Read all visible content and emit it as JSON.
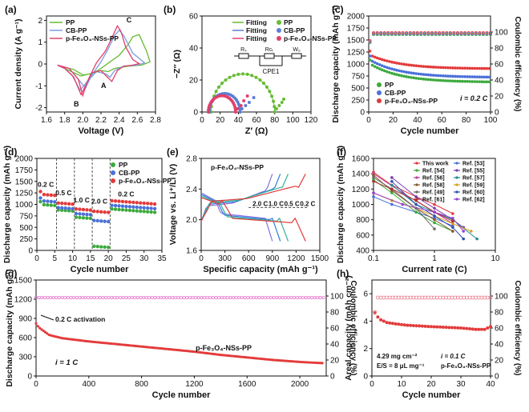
{
  "chart_data": [
    {
      "id": "a",
      "panel_label": "(a)",
      "type": "line",
      "xlabel": "Voltage (V)",
      "ylabel": "Current density (A g⁻¹)",
      "xlim": [
        1.6,
        2.8
      ],
      "ylim": [
        -2.2,
        2.2
      ],
      "xticks": [
        "1.6",
        "1.8",
        "2.0",
        "2.2",
        "2.4",
        "2.6",
        "2.8"
      ],
      "yticks": [
        "-2",
        "-1",
        "0",
        "1",
        "2"
      ],
      "annotations": [
        "A",
        "B",
        "C"
      ],
      "legend": [
        "PP",
        "CB-PP",
        "p-Fe₃O₄-NSs-PP"
      ],
      "colors": [
        "#66bb33",
        "#7a9ee0",
        "#e0406a"
      ],
      "series": [
        {
          "name": "PP",
          "x": [
            1.75,
            1.9,
            2.0,
            2.1,
            2.2,
            2.3,
            2.4,
            2.5,
            2.55,
            2.62,
            2.7,
            2.74,
            2.65,
            2.5,
            2.35,
            2.28,
            2.2,
            2.08,
            1.98,
            1.9,
            1.8,
            1.75
          ],
          "y": [
            -0.1,
            -0.25,
            -0.5,
            -0.45,
            -0.2,
            0.1,
            0.4,
            0.9,
            1.25,
            1.35,
            0.6,
            0.1,
            -0.05,
            -0.1,
            -0.2,
            -0.35,
            -0.3,
            -0.45,
            -0.55,
            -0.4,
            -0.2,
            -0.1
          ]
        },
        {
          "name": "CB-PP",
          "x": [
            1.72,
            1.85,
            1.95,
            2.03,
            2.1,
            2.2,
            2.28,
            2.35,
            2.4,
            2.45,
            2.55,
            2.68,
            2.6,
            2.45,
            2.35,
            2.3,
            2.25,
            2.15,
            2.05,
            1.97,
            1.88,
            1.8,
            1.72
          ],
          "y": [
            -0.05,
            -0.2,
            -0.7,
            -1.1,
            -0.5,
            0.1,
            0.7,
            1.3,
            1.55,
            1.3,
            0.5,
            0.05,
            -0.05,
            -0.1,
            -0.3,
            -0.6,
            -0.45,
            -0.35,
            -0.8,
            -1.2,
            -0.5,
            -0.2,
            -0.05
          ]
        },
        {
          "name": "p-Fe₃O₄-NSs-PP",
          "x": [
            1.72,
            1.85,
            1.95,
            2.0,
            2.05,
            2.15,
            2.25,
            2.32,
            2.38,
            2.42,
            2.47,
            2.55,
            2.62,
            2.55,
            2.45,
            2.38,
            2.32,
            2.27,
            2.2,
            2.1,
            2.03,
            1.98,
            1.9,
            1.8,
            1.72
          ],
          "y": [
            -0.05,
            -0.2,
            -0.7,
            -1.45,
            -0.8,
            0.05,
            0.6,
            1.2,
            1.75,
            1.5,
            0.8,
            0.2,
            0.02,
            -0.05,
            -0.1,
            -0.3,
            -0.8,
            -0.6,
            -0.3,
            -0.4,
            -1.0,
            -1.4,
            -0.6,
            -0.2,
            -0.05
          ]
        }
      ]
    },
    {
      "id": "b",
      "panel_label": "(b)",
      "type": "scatter",
      "xlabel": "Z′ (Ω)",
      "ylabel": "−Z″ (Ω)",
      "xlim": [
        0,
        120
      ],
      "ylim": [
        0,
        60
      ],
      "xticks": [
        "0",
        "20",
        "40",
        "60",
        "80",
        "100",
        "120"
      ],
      "yticks": [
        "0",
        "20",
        "40",
        "60"
      ],
      "legend": [
        "Fitting",
        "Fitting",
        "Fitting",
        "PP",
        "CB-PP",
        "p-Fe₃O₄-NSs-PP"
      ],
      "circuit_labels": [
        "Rₛ",
        "Rᴄₜ",
        "Wₒ",
        "CPE1"
      ],
      "colors": [
        "#66bb33",
        "#5a7fd6",
        "#e0406a"
      ],
      "series": [
        {
          "name": "PP",
          "center": 45,
          "radius": 35,
          "tail_x": [
            82,
            85,
            88,
            90
          ],
          "tail_y": [
            2,
            4,
            6,
            8
          ]
        },
        {
          "name": "CB-PP",
          "center": 25,
          "radius": 17,
          "tail_x": [
            44,
            48,
            52,
            57
          ],
          "tail_y": [
            2,
            4,
            6,
            9
          ]
        },
        {
          "name": "p-Fe₃O₄-NSs-PP",
          "center": 22,
          "radius": 15,
          "tail_x": [
            39,
            43,
            46,
            50
          ],
          "tail_y": [
            2,
            4,
            7,
            10
          ]
        }
      ]
    },
    {
      "id": "c",
      "panel_label": "(c)",
      "type": "scatter",
      "xlabel": "Cycle number",
      "ylabel": "Discharge capacity (mAh g⁻¹)",
      "y2label": "Coulombic efficiency (%)",
      "xlim": [
        0,
        100
      ],
      "ylim": [
        0,
        2000
      ],
      "y2lim": [
        0,
        120
      ],
      "xticks": [
        "0",
        "20",
        "40",
        "60",
        "80",
        "100"
      ],
      "yticks": [
        "0",
        "250",
        "500",
        "750",
        "1000",
        "1250",
        "1500",
        "1750",
        "2000"
      ],
      "y2ticks": [
        "0",
        "20",
        "40",
        "60",
        "80",
        "100"
      ],
      "rate_label": "i = 0.2 C",
      "legend": [
        "PP",
        "CB-PP",
        "p-Fe₃O₄-NSs-PP"
      ],
      "colors": [
        "#3daa3d",
        "#4a70d8",
        "#e33b3b"
      ],
      "series": [
        {
          "name": "PP",
          "start": 1020,
          "end": 620
        },
        {
          "name": "CB-PP",
          "start": 1100,
          "end": 720
        },
        {
          "name": "p-Fe₃O₄-NSs-PP",
          "start": 1200,
          "end": 900
        }
      ],
      "ce": [
        {
          "name": "PP",
          "value": 97
        },
        {
          "name": "CB-PP",
          "value": 98
        },
        {
          "name": "p-Fe₃O₄-NSs-PP",
          "value": 99
        }
      ]
    },
    {
      "id": "d",
      "panel_label": "(d)",
      "type": "scatter",
      "xlabel": "Cycle number",
      "ylabel": "Discharge capacity (mAh g⁻¹)",
      "xlim": [
        0,
        35
      ],
      "ylim": [
        0,
        2000
      ],
      "xticks": [
        "0",
        "5",
        "10",
        "15",
        "20",
        "25",
        "30",
        "35"
      ],
      "yticks": [
        "0",
        "250",
        "500",
        "750",
        "1000",
        "1250",
        "1500",
        "1750",
        "2000"
      ],
      "rate_labels": [
        "0.2 C",
        "0.5 C",
        "1.0 C",
        "2.0 C",
        "0.2 C"
      ],
      "legend": [
        "PP",
        "CB-PP",
        "p-Fe₃O₄-NSs-PP"
      ],
      "colors": [
        "#3daa3d",
        "#4a70d8",
        "#e33b3b"
      ],
      "series": [
        {
          "name": "PP",
          "levels": [
            1000,
            880,
            720,
            90,
            900
          ]
        },
        {
          "name": "CB-PP",
          "levels": [
            1080,
            930,
            800,
            650,
            980
          ]
        },
        {
          "name": "p-Fe₃O₄-NSs-PP",
          "levels": [
            1220,
            1030,
            900,
            850,
            1080
          ]
        }
      ]
    },
    {
      "id": "e",
      "panel_label": "(e)",
      "type": "line",
      "title": "p-Fe₃O₄-NSs-PP",
      "xlabel": "Specific capacity (mAh g⁻¹)",
      "ylabel": "Voltage vs. Li⁺/Li (V)",
      "xlim": [
        0,
        1500
      ],
      "ylim": [
        1.6,
        2.8
      ],
      "xticks": [
        "0",
        "300",
        "600",
        "900",
        "1200",
        "1500"
      ],
      "yticks": [
        "1.6",
        "2.0",
        "2.4",
        "2.8"
      ],
      "rates": [
        "2.0 C",
        "1.0 C",
        "0.5 C",
        "0.2 C"
      ],
      "colors": [
        "#8a6fdf",
        "#2f7fd8",
        "#2fb39a",
        "#e03a3a"
      ],
      "series": [
        {
          "name": "2.0 C",
          "cap": 900
        },
        {
          "name": "1.0 C",
          "cap": 1000
        },
        {
          "name": "0.5 C",
          "cap": 1100
        },
        {
          "name": "0.2 C",
          "cap": 1320
        }
      ]
    },
    {
      "id": "f",
      "panel_label": "(f)",
      "type": "line",
      "xlabel": "Current rate (C)",
      "ylabel": "Discharge capacity (mAh g⁻¹)",
      "xlim": [
        0.1,
        10
      ],
      "ylim": [
        400,
        1600
      ],
      "xscale": "log",
      "xticks": [
        "0.1",
        "1",
        "10"
      ],
      "yticks": [
        "400",
        "600",
        "800",
        "1000",
        "1200",
        "1400",
        "1600"
      ],
      "legend": [
        "This work",
        "Ref. [53]",
        "Ref. [54]",
        "Ref. [55]",
        "Ref. [56]",
        "Ref. [57]",
        "Ref. [58]",
        "Ref. [59]",
        "Ref. [49]",
        "Ref. [60]",
        "Ref. [61]",
        "Ref. [62]"
      ],
      "colors": [
        "#e33b3b",
        "#4a70d8",
        "#3daa3d",
        "#7a3fb0",
        "#c23fa0",
        "#1f8f8f",
        "#8a5a2a",
        "#d9a21f",
        "#6a6a6a",
        "#2f4fb0",
        "#b03030",
        "#9a3fd0"
      ],
      "series": [
        {
          "name": "This work",
          "x": [
            0.1,
            0.2,
            0.5,
            1,
            2
          ],
          "y": [
            1420,
            1250,
            1100,
            1000,
            880
          ]
        },
        {
          "name": "Ref. [53]",
          "x": [
            0.1,
            0.2,
            0.5,
            1,
            2
          ],
          "y": [
            1100,
            1000,
            900,
            820,
            720
          ]
        },
        {
          "name": "Ref. [54]",
          "x": [
            0.1,
            0.2,
            0.5,
            1,
            2
          ],
          "y": [
            1320,
            1150,
            900,
            760,
            650
          ]
        },
        {
          "name": "Ref. [55]",
          "x": [
            0.2,
            0.5,
            1,
            2,
            3
          ],
          "y": [
            1350,
            1100,
            950,
            800,
            700
          ]
        },
        {
          "name": "Ref. [56]",
          "x": [
            0.1,
            0.3,
            1,
            2
          ],
          "y": [
            1400,
            1150,
            900,
            750
          ]
        },
        {
          "name": "Ref. [57]",
          "x": [
            0.2,
            0.5,
            1,
            2,
            5
          ],
          "y": [
            1250,
            1000,
            900,
            800,
            550
          ]
        },
        {
          "name": "Ref. [58]",
          "x": [
            0.1,
            0.2,
            0.5,
            1,
            2
          ],
          "y": [
            1380,
            1180,
            950,
            800,
            650
          ]
        },
        {
          "name": "Ref. [59]",
          "x": [
            0.1,
            0.2,
            0.5,
            1,
            2,
            4
          ],
          "y": [
            1150,
            1050,
            950,
            850,
            750,
            650
          ]
        },
        {
          "name": "Ref. [49]",
          "x": [
            0.1,
            0.2,
            0.5,
            1
          ],
          "y": [
            1350,
            1200,
            950,
            680
          ]
        },
        {
          "name": "Ref. [60]",
          "x": [
            0.2,
            0.5,
            1,
            2,
            3
          ],
          "y": [
            1300,
            1000,
            850,
            700,
            550
          ]
        },
        {
          "name": "Ref. [61]",
          "x": [
            0.1,
            0.2,
            0.5,
            1,
            2
          ],
          "y": [
            1300,
            1200,
            1050,
            900,
            780
          ]
        },
        {
          "name": "Ref. [62]",
          "x": [
            0.1,
            0.3,
            1,
            2,
            3
          ],
          "y": [
            1150,
            1000,
            900,
            820,
            650
          ]
        }
      ]
    },
    {
      "id": "g",
      "panel_label": "(g)",
      "type": "scatter",
      "xlabel": "Cycle number",
      "ylabel": "Discharge capacity (mAh g⁻¹)",
      "y2label": "Coulombic efficiency (%)",
      "xlim": [
        0,
        2200
      ],
      "ylim": [
        0,
        1500
      ],
      "y2lim": [
        0,
        120
      ],
      "xticks": [
        "0",
        "400",
        "800",
        "1200",
        "1600",
        "2000"
      ],
      "yticks": [
        "0",
        "300",
        "600",
        "900",
        "1200",
        "1500"
      ],
      "y2ticks": [
        "0",
        "20",
        "40",
        "60",
        "80",
        "100"
      ],
      "annotations": [
        "0.2 C activation",
        "p-Fe₃O₄-NSs-PP",
        "i = 1 C"
      ],
      "colors": [
        "#e33b3b",
        "#e87ad0"
      ],
      "series": [
        {
          "name": "Discharge capacity",
          "x": [
            0,
            20,
            100,
            200,
            400,
            600,
            800,
            1000,
            1200,
            1400,
            1600,
            1800,
            2000,
            2180
          ],
          "y": [
            820,
            760,
            640,
            590,
            540,
            500,
            460,
            420,
            380,
            330,
            290,
            250,
            220,
            200
          ]
        },
        {
          "name": "Coulombic efficiency",
          "value": 98
        }
      ]
    },
    {
      "id": "h",
      "panel_label": "(h)",
      "type": "scatter",
      "xlabel": "Cycle number",
      "ylabel": "Areal capacity (mAh cm⁻²)",
      "y2label": "Coulombic efficiency (%)",
      "xlim": [
        0,
        40
      ],
      "ylim": [
        0,
        7
      ],
      "y2lim": [
        0,
        120
      ],
      "xticks": [
        "0",
        "10",
        "20",
        "30",
        "40"
      ],
      "yticks": [
        "0",
        "2",
        "4",
        "6"
      ],
      "y2ticks": [
        "0",
        "20",
        "40",
        "60",
        "80",
        "100"
      ],
      "annotations": [
        "4.29 mg cm⁻²",
        "E/S = 8 μL mg⁻¹",
        "i = 0.1 C",
        "p-Fe₃O₄-NSs-PP"
      ],
      "colors": [
        "#e33b3b",
        "#e87a8a"
      ],
      "series": [
        {
          "name": "Areal capacity",
          "x": [
            1,
            2,
            3,
            5,
            8,
            12,
            16,
            20,
            25,
            30,
            35,
            38,
            40
          ],
          "y": [
            4.6,
            4.3,
            4.1,
            3.9,
            3.8,
            3.7,
            3.65,
            3.6,
            3.55,
            3.5,
            3.4,
            3.4,
            3.6
          ]
        },
        {
          "name": "Coulombic efficiency",
          "value": 98
        }
      ]
    }
  ]
}
